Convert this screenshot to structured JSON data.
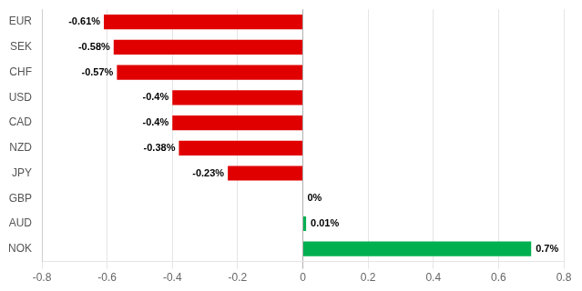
{
  "chart_data": {
    "type": "bar",
    "orientation": "horizontal",
    "categories": [
      "EUR",
      "SEK",
      "CHF",
      "USD",
      "CAD",
      "NZD",
      "JPY",
      "GBP",
      "AUD",
      "NOK"
    ],
    "values": [
      -0.61,
      -0.58,
      -0.57,
      -0.4,
      -0.4,
      -0.38,
      -0.23,
      0.0,
      0.01,
      0.7
    ],
    "value_labels": [
      "-0.61%",
      "-0.58%",
      "-0.57%",
      "-0.4%",
      "-0.4%",
      "-0.38%",
      "-0.23%",
      "0%",
      "0.01%",
      "0.7%"
    ],
    "colors": [
      "#e00000",
      "#e00000",
      "#e00000",
      "#e00000",
      "#e00000",
      "#e00000",
      "#e00000",
      null,
      "#00b050",
      "#00b050"
    ],
    "xlim": [
      -0.8,
      0.8
    ],
    "xticks": [
      -0.8,
      -0.6,
      -0.4,
      -0.2,
      0,
      0.2,
      0.4,
      0.6,
      0.8
    ],
    "grid": true,
    "data_labels": true
  }
}
